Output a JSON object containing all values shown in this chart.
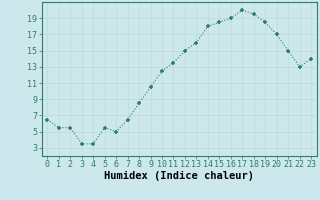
{
  "x": [
    0,
    1,
    2,
    3,
    4,
    5,
    6,
    7,
    8,
    9,
    10,
    11,
    12,
    13,
    14,
    15,
    16,
    17,
    18,
    19,
    20,
    21,
    22,
    23
  ],
  "y": [
    6.5,
    5.5,
    5.5,
    3.5,
    3.5,
    5.5,
    5.0,
    6.5,
    8.5,
    10.5,
    12.5,
    13.5,
    15.0,
    16.0,
    18.0,
    18.5,
    19.0,
    20.0,
    19.5,
    18.5,
    17.0,
    15.0,
    13.0,
    14.0
  ],
  "xlabel": "Humidex (Indice chaleur)",
  "xlim": [
    -0.5,
    23.5
  ],
  "ylim": [
    2,
    21
  ],
  "yticks": [
    3,
    5,
    7,
    9,
    11,
    13,
    15,
    17,
    19
  ],
  "xtick_labels": [
    "0",
    "1",
    "2",
    "3",
    "4",
    "5",
    "6",
    "7",
    "8",
    "9",
    "10",
    "11",
    "12",
    "13",
    "14",
    "15",
    "16",
    "17",
    "18",
    "19",
    "20",
    "21",
    "22",
    "23"
  ],
  "line_color": "#2e7d6e",
  "marker_color": "#2e7d6e",
  "bg_color": "#cce8ec",
  "grid_color": "#c0d8dc",
  "tick_label_fontsize": 6.0,
  "xlabel_fontsize": 7.5
}
